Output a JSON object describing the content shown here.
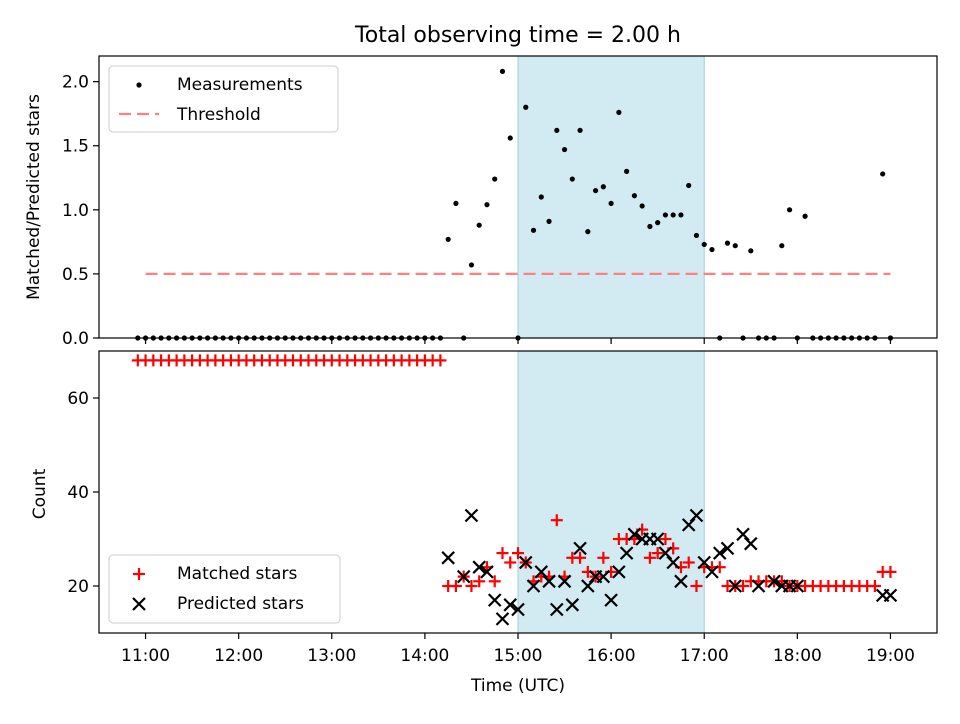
{
  "title": "Total observing time = 2.00 h",
  "colors": {
    "threshold": "#ff7f7f",
    "span": "#add8e6",
    "matched": "#ff0000",
    "predicted": "#000000"
  },
  "chart_data": [
    {
      "type": "scatter",
      "ylabel": "Matched/Predicted stars",
      "ylim": [
        0,
        2.2
      ],
      "yticks": [
        "0.0",
        "0.5",
        "1.0",
        "1.5",
        "2.0"
      ],
      "ytick_values": [
        0,
        0.5,
        1.0,
        1.5,
        2.0
      ],
      "shaded_span": [
        "15:00",
        "17:00"
      ],
      "legend_position": "top-left",
      "threshold": {
        "name": "Threshold",
        "value": 0.5,
        "x_range": [
          "11:00",
          "19:00"
        ]
      },
      "series": [
        {
          "name": "Measurements",
          "x": [
            "10:55",
            "11:00",
            "11:05",
            "11:10",
            "11:15",
            "11:20",
            "11:25",
            "11:30",
            "11:35",
            "11:40",
            "11:45",
            "11:50",
            "11:55",
            "12:00",
            "12:05",
            "12:10",
            "12:15",
            "12:20",
            "12:25",
            "12:30",
            "12:35",
            "12:40",
            "12:45",
            "12:50",
            "12:55",
            "13:00",
            "13:05",
            "13:10",
            "13:15",
            "13:20",
            "13:25",
            "13:30",
            "13:35",
            "13:40",
            "13:45",
            "13:50",
            "13:55",
            "14:00",
            "14:05",
            "14:10",
            "14:15",
            "14:25",
            "14:20",
            "14:30",
            "14:35",
            "14:40",
            "14:45",
            "14:50",
            "14:55",
            "15:00",
            "15:05",
            "15:10",
            "15:15",
            "15:20",
            "15:25",
            "15:30",
            "15:35",
            "15:40",
            "15:45",
            "15:50",
            "15:55",
            "16:00",
            "16:05",
            "16:10",
            "16:15",
            "16:20",
            "16:25",
            "16:30",
            "16:35",
            "16:40",
            "16:45",
            "16:50",
            "16:55",
            "17:00",
            "17:05",
            "17:10",
            "17:15",
            "17:20",
            "17:25",
            "17:30",
            "17:35",
            "17:40",
            "17:45",
            "17:50",
            "17:55",
            "18:00",
            "18:05",
            "18:10",
            "18:15",
            "18:20",
            "18:25",
            "18:30",
            "18:35",
            "18:40",
            "18:45",
            "18:50",
            "18:55",
            "19:00"
          ],
          "y": [
            0,
            0,
            0,
            0,
            0,
            0,
            0,
            0,
            0,
            0,
            0,
            0,
            0,
            0,
            0,
            0,
            0,
            0,
            0,
            0,
            0,
            0,
            0,
            0,
            0,
            0,
            0,
            0,
            0,
            0,
            0,
            0,
            0,
            0,
            0,
            0,
            0,
            0,
            0,
            0,
            0.77,
            0,
            1.05,
            0.57,
            0.88,
            1.04,
            1.24,
            2.08,
            1.56,
            0,
            1.8,
            0.84,
            1.1,
            0.91,
            1.62,
            1.47,
            1.24,
            1.62,
            0.83,
            1.15,
            1.18,
            1.05,
            1.76,
            1.3,
            1.11,
            1.03,
            0.87,
            0.9,
            0.96,
            0.96,
            0.96,
            1.19,
            0.8,
            0.73,
            0.69,
            0,
            0.74,
            0.72,
            0,
            0.68,
            0,
            0,
            0,
            0.72,
            1.0,
            0,
            0.95,
            0,
            0,
            0,
            0,
            0,
            0,
            0,
            0,
            0,
            1.28,
            0
          ]
        }
      ]
    },
    {
      "type": "scatter",
      "xlabel": "Time (UTC)",
      "ylabel": "Count",
      "ylim": [
        10,
        70
      ],
      "yticks": [
        "20",
        "40",
        "60"
      ],
      "ytick_values": [
        20,
        40,
        60
      ],
      "xticks": [
        "11:00",
        "12:00",
        "13:00",
        "14:00",
        "15:00",
        "16:00",
        "17:00",
        "18:00",
        "19:00"
      ],
      "xlim": [
        "10:30",
        "19:30"
      ],
      "shaded_span": [
        "15:00",
        "17:00"
      ],
      "legend_position": "lower-left",
      "series": [
        {
          "name": "Matched stars",
          "x": [
            "10:55",
            "11:00",
            "11:05",
            "11:10",
            "11:15",
            "11:20",
            "11:25",
            "11:30",
            "11:35",
            "11:40",
            "11:45",
            "11:50",
            "11:55",
            "12:00",
            "12:05",
            "12:10",
            "12:15",
            "12:20",
            "12:25",
            "12:30",
            "12:35",
            "12:40",
            "12:45",
            "12:50",
            "12:55",
            "13:00",
            "13:05",
            "13:10",
            "13:15",
            "13:20",
            "13:25",
            "13:30",
            "13:35",
            "13:40",
            "13:45",
            "13:50",
            "13:55",
            "14:00",
            "14:05",
            "14:10",
            "14:15",
            "14:20",
            "14:25",
            "14:30",
            "14:35",
            "14:40",
            "14:45",
            "14:50",
            "14:55",
            "15:00",
            "15:05",
            "15:10",
            "15:15",
            "15:20",
            "15:25",
            "15:30",
            "15:35",
            "15:40",
            "15:45",
            "15:50",
            "15:55",
            "16:00",
            "16:05",
            "16:10",
            "16:15",
            "16:20",
            "16:25",
            "16:30",
            "16:35",
            "16:40",
            "16:45",
            "16:50",
            "16:55",
            "17:00",
            "17:05",
            "17:10",
            "17:15",
            "17:20",
            "17:25",
            "17:30",
            "17:35",
            "17:40",
            "17:45",
            "17:50",
            "17:55",
            "18:00",
            "18:05",
            "18:10",
            "18:15",
            "18:20",
            "18:25",
            "18:30",
            "18:35",
            "18:40",
            "18:45",
            "18:50",
            "18:55",
            "19:00"
          ],
          "y": [
            68,
            68,
            68,
            68,
            68,
            68,
            68,
            68,
            68,
            68,
            68,
            68,
            68,
            68,
            68,
            68,
            68,
            68,
            68,
            68,
            68,
            68,
            68,
            68,
            68,
            68,
            68,
            68,
            68,
            68,
            68,
            68,
            68,
            68,
            68,
            68,
            68,
            68,
            68,
            68,
            20,
            20,
            22,
            20,
            21,
            24,
            21,
            27,
            25,
            27,
            25,
            21,
            22,
            22,
            34,
            22,
            26,
            26,
            23,
            22,
            26,
            23,
            30,
            30,
            30,
            32,
            26,
            27,
            30,
            28,
            24,
            25,
            20,
            24,
            24,
            24,
            20,
            20,
            20,
            21,
            21,
            21,
            21,
            21,
            20,
            20,
            20,
            20,
            20,
            20,
            20,
            20,
            20,
            20,
            20,
            20,
            23,
            23
          ]
        },
        {
          "name": "Predicted stars",
          "x": [
            "14:15",
            "14:25",
            "14:30",
            "14:35",
            "14:40",
            "14:45",
            "14:50",
            "14:55",
            "15:00",
            "15:05",
            "15:10",
            "15:15",
            "15:20",
            "15:25",
            "15:30",
            "15:35",
            "15:40",
            "15:45",
            "15:50",
            "15:55",
            "16:00",
            "16:05",
            "16:10",
            "16:15",
            "16:20",
            "16:25",
            "16:30",
            "16:35",
            "16:40",
            "16:45",
            "16:50",
            "16:55",
            "17:00",
            "17:05",
            "17:10",
            "17:15",
            "17:20",
            "17:25",
            "17:30",
            "17:35",
            "17:45",
            "17:50",
            "17:55",
            "18:00",
            "18:55",
            "19:00"
          ],
          "y": [
            26,
            22,
            35,
            24,
            23,
            17,
            13,
            16,
            15,
            25,
            20,
            23,
            21,
            15,
            21,
            16,
            28,
            20,
            22,
            22,
            17,
            23,
            27,
            31,
            30,
            30,
            30,
            27,
            25,
            21,
            33,
            35,
            25,
            23,
            27,
            28,
            20,
            31,
            29,
            20,
            21,
            20,
            20,
            20,
            18,
            18
          ]
        }
      ]
    }
  ]
}
